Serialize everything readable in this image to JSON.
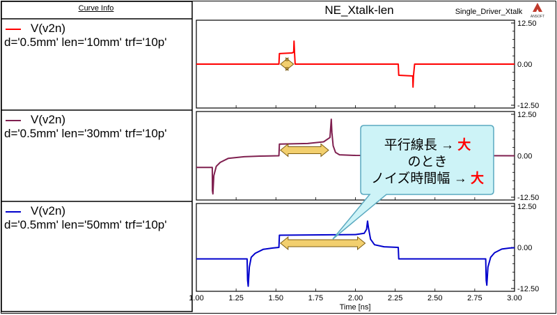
{
  "header": {
    "curve_info_label": "Curve Info",
    "plot_title": "NE_Xtalk-len",
    "design_name": "Single_Driver_Xtalk",
    "logo_text": "ANSOFT"
  },
  "callout": {
    "line1_prefix": "平行線長 → ",
    "line1_emph": "大",
    "line2": "のとき",
    "line3_prefix": "ノイズ時間幅 → ",
    "line3_emph": "大"
  },
  "colors": {
    "red": "#ff0000",
    "maroon": "#7f1f4f",
    "blue": "#0000cc",
    "callout_fill": "#cdf3f7",
    "callout_border": "#5aa9c0",
    "arrow_fill": "#f2cf6e",
    "emphasis": "#ff0000"
  },
  "chart_data": [
    {
      "type": "line",
      "series": [
        {
          "name": "V(v2n)",
          "legend_desc": "d='0.5mm' len='10mm' trf='10p'",
          "color": "#ff0000",
          "points": [
            [
              1.0,
              0
            ],
            [
              1.519,
              0
            ],
            [
              1.522,
              3.2
            ],
            [
              1.6,
              3.4
            ],
            [
              1.612,
              3.6
            ],
            [
              1.614,
              7.0
            ],
            [
              1.617,
              3.6
            ],
            [
              1.621,
              0
            ],
            [
              2.0,
              0
            ],
            [
              2.269,
              0
            ],
            [
              2.272,
              -3.4
            ],
            [
              2.36,
              -3.6
            ],
            [
              2.362,
              -7.0
            ],
            [
              2.365,
              -3.5
            ],
            [
              2.372,
              0
            ],
            [
              3.0,
              0
            ]
          ]
        }
      ],
      "xlim": [
        1.0,
        3.0
      ],
      "ylim": [
        -12.5,
        12.5
      ],
      "yticks": [
        "12.50",
        "0.00",
        "-12.50"
      ],
      "duration_marker": {
        "x_start": 1.52,
        "x_end": 1.62
      }
    },
    {
      "type": "line",
      "series": [
        {
          "name": "V(v2n)",
          "legend_desc": "d='0.5mm' len='30mm' trf='10p'",
          "color": "#7f1f4f",
          "points": [
            [
              1.0,
              -3.5
            ],
            [
              1.1,
              -3.5
            ],
            [
              1.101,
              -10.5
            ],
            [
              1.104,
              -11.5
            ],
            [
              1.11,
              -6
            ],
            [
              1.125,
              -3.2
            ],
            [
              1.15,
              -2.0
            ],
            [
              1.2,
              -0.8
            ],
            [
              1.3,
              -0.3
            ],
            [
              1.4,
              -0.1
            ],
            [
              1.519,
              0
            ],
            [
              1.522,
              3.5
            ],
            [
              1.7,
              3.7
            ],
            [
              1.8,
              4.2
            ],
            [
              1.84,
              5.5
            ],
            [
              1.848,
              11.0
            ],
            [
              1.852,
              7.0
            ],
            [
              1.86,
              3.0
            ],
            [
              1.875,
              1.0
            ],
            [
              1.9,
              0.3
            ],
            [
              2.0,
              0.1
            ],
            [
              3.0,
              0
            ]
          ]
        }
      ],
      "xlim": [
        1.0,
        3.0
      ],
      "ylim": [
        -12.5,
        12.5
      ],
      "yticks": [
        "12.50",
        "0.00",
        "-12.50"
      ],
      "duration_marker": {
        "x_start": 1.52,
        "x_end": 1.84
      }
    },
    {
      "type": "line",
      "series": [
        {
          "name": "V(v2n)",
          "legend_desc": "d='0.5mm' len='50mm' trf='10p'",
          "color": "#0000cc",
          "points": [
            [
              1.0,
              -3.5
            ],
            [
              1.319,
              -3.5
            ],
            [
              1.322,
              -10.0
            ],
            [
              1.326,
              -11.8
            ],
            [
              1.333,
              -6
            ],
            [
              1.345,
              -3.0
            ],
            [
              1.37,
              -1.8
            ],
            [
              1.42,
              -0.6
            ],
            [
              1.48,
              -0.2
            ],
            [
              1.519,
              0
            ],
            [
              1.522,
              3.7
            ],
            [
              2.0,
              3.9
            ],
            [
              2.055,
              4.3
            ],
            [
              2.07,
              5.5
            ],
            [
              2.076,
              8.0
            ],
            [
              2.082,
              6.0
            ],
            [
              2.095,
              2.5
            ],
            [
              2.12,
              0.8
            ],
            [
              2.18,
              0.2
            ],
            [
              2.269,
              0
            ],
            [
              2.272,
              -3.5
            ],
            [
              2.819,
              -3.5
            ],
            [
              2.822,
              -10.0
            ],
            [
              2.826,
              -11.5
            ],
            [
              2.833,
              -6
            ],
            [
              2.85,
              -3.0
            ],
            [
              2.875,
              -1.6
            ],
            [
              2.92,
              -0.5
            ],
            [
              2.97,
              -0.2
            ],
            [
              3.0,
              -0.1
            ]
          ]
        }
      ],
      "xlim": [
        1.0,
        3.0
      ],
      "ylim": [
        -12.5,
        12.5
      ],
      "yticks": [
        "12.50",
        "0.00",
        "-12.50"
      ],
      "xticks": [
        "1.00",
        "1.25",
        "1.50",
        "1.75",
        "2.00",
        "2.25",
        "2.50",
        "2.75",
        "3.00"
      ],
      "xlabel": "Time [ns]",
      "duration_marker": {
        "x_start": 1.52,
        "x_end": 2.07
      }
    }
  ]
}
